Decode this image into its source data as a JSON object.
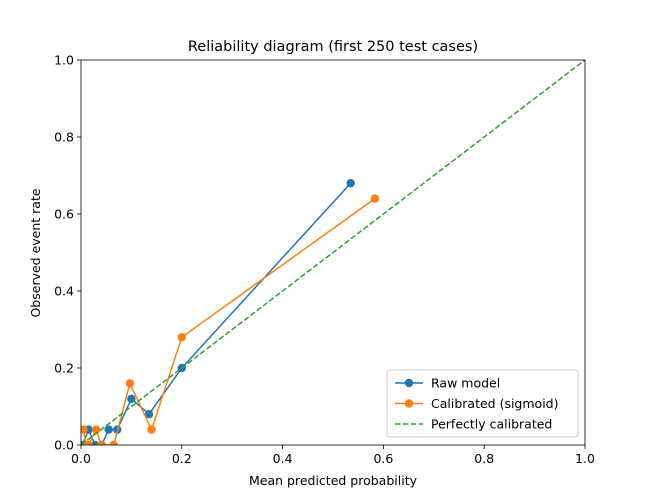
{
  "chart_data": {
    "type": "line",
    "title": "Reliability diagram (first 250 test cases)",
    "xlabel": "Mean predicted probability",
    "ylabel": "Observed event rate",
    "xlim": [
      0.0,
      1.0
    ],
    "ylim": [
      0.0,
      1.0
    ],
    "xticks": [
      "0.0",
      "0.2",
      "0.4",
      "0.6",
      "0.8",
      "1.0"
    ],
    "yticks": [
      "0.0",
      "0.2",
      "0.4",
      "0.6",
      "0.8",
      "1.0"
    ],
    "grid": false,
    "legend_position": "lower-right",
    "series": [
      {
        "name": "Raw model",
        "color": "#1f77b4",
        "style": "solid",
        "marker": "circle",
        "x": [
          0.003,
          0.015,
          0.028,
          0.041,
          0.055,
          0.072,
          0.1,
          0.135,
          0.2,
          0.535
        ],
        "y": [
          0.0,
          0.04,
          0.0,
          0.0,
          0.04,
          0.04,
          0.12,
          0.08,
          0.2,
          0.68
        ]
      },
      {
        "name": "Calibrated (sigmoid)",
        "color": "#ff7f0e",
        "style": "solid",
        "marker": "circle",
        "x": [
          0.005,
          0.01,
          0.015,
          0.03,
          0.04,
          0.065,
          0.097,
          0.14,
          0.2,
          0.583
        ],
        "y": [
          0.04,
          0.0,
          0.0,
          0.04,
          0.0,
          0.0,
          0.16,
          0.04,
          0.28,
          0.64
        ]
      },
      {
        "name": "Perfectly calibrated",
        "color": "#2ca02c",
        "style": "dashed",
        "marker": "none",
        "x": [
          0.0,
          1.0
        ],
        "y": [
          0.0,
          1.0
        ]
      }
    ]
  }
}
